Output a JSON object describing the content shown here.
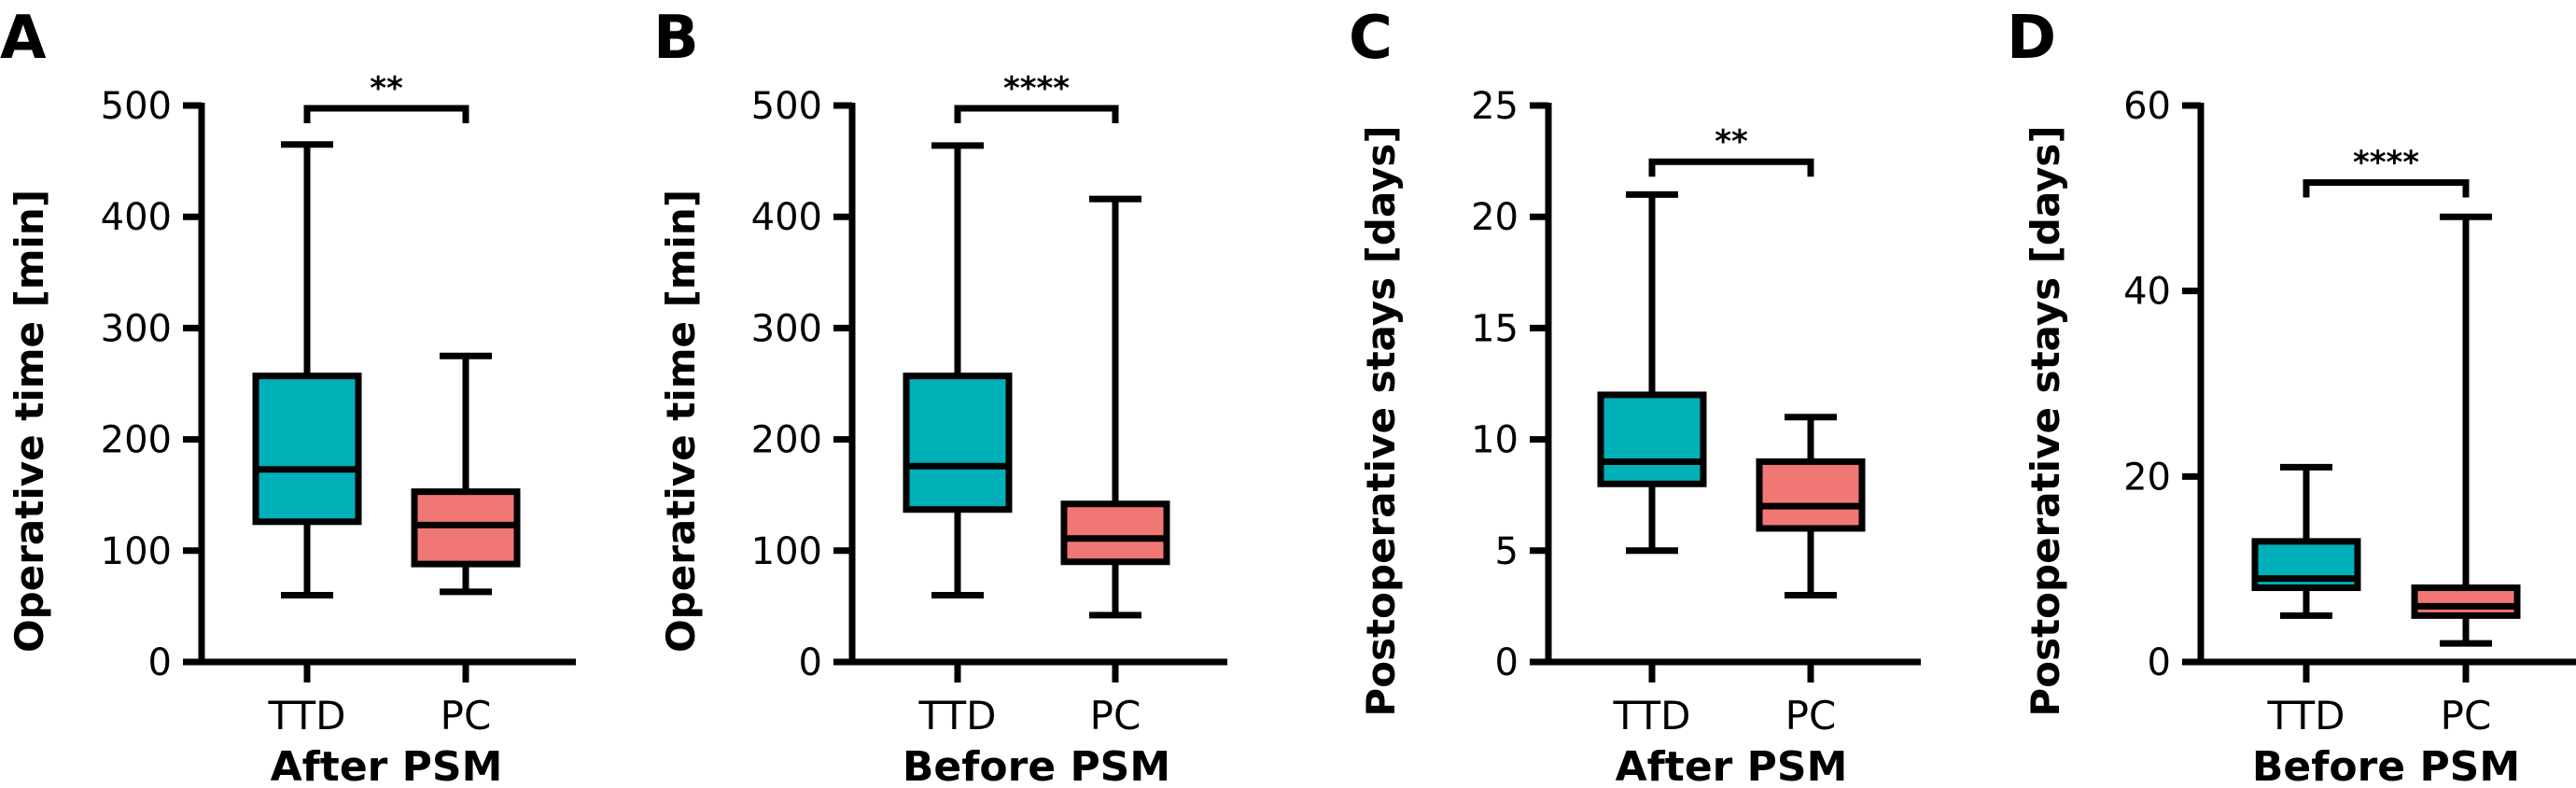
{
  "figure": {
    "colors": {
      "TTD": "#00B0B9",
      "PC": "#F17775",
      "line": "#000000"
    }
  },
  "chart_data": [
    {
      "type": "box",
      "panel": "A",
      "title": "",
      "xlabel": "After PSM",
      "ylabel": "Operative time [min]",
      "ylim": [
        0,
        500
      ],
      "yticks": [
        0,
        100,
        200,
        300,
        400,
        500
      ],
      "categories": [
        "TTD",
        "PC"
      ],
      "series": [
        {
          "name": "TTD",
          "min": 60,
          "q1": 126,
          "median": 173,
          "q3": 257,
          "max": 465
        },
        {
          "name": "PC",
          "min": 63,
          "q1": 88,
          "median": 123,
          "q3": 153,
          "max": 275
        }
      ],
      "significance": {
        "from": "TTD",
        "to": "PC",
        "label": "**",
        "y": 500
      },
      "grid": false
    },
    {
      "type": "box",
      "panel": "B",
      "title": "",
      "xlabel": "Before PSM",
      "ylabel": "Operative time [min]",
      "ylim": [
        0,
        500
      ],
      "yticks": [
        0,
        100,
        200,
        300,
        400,
        500
      ],
      "categories": [
        "TTD",
        "PC"
      ],
      "series": [
        {
          "name": "TTD",
          "min": 60,
          "q1": 137,
          "median": 176,
          "q3": 257,
          "max": 464
        },
        {
          "name": "PC",
          "min": 42,
          "q1": 90,
          "median": 111,
          "q3": 142,
          "max": 416
        }
      ],
      "significance": {
        "from": "TTD",
        "to": "PC",
        "label": "****",
        "y": 500
      },
      "grid": false
    },
    {
      "type": "box",
      "panel": "C",
      "title": "",
      "xlabel": "After PSM",
      "ylabel": "Postoperative stays [days]",
      "ylim": [
        0,
        25
      ],
      "yticks": [
        0,
        5,
        10,
        15,
        20,
        25
      ],
      "categories": [
        "TTD",
        "PC"
      ],
      "series": [
        {
          "name": "TTD",
          "min": 5,
          "q1": 8,
          "median": 9,
          "q3": 12,
          "max": 21
        },
        {
          "name": "PC",
          "min": 3,
          "q1": 6,
          "median": 7,
          "q3": 9,
          "max": 11
        }
      ],
      "significance": {
        "from": "TTD",
        "to": "PC",
        "label": "**",
        "y": 22.6
      },
      "grid": false
    },
    {
      "type": "box",
      "panel": "D",
      "title": "",
      "xlabel": "Before PSM",
      "ylabel": "Postoperative stays [days]",
      "ylim": [
        0,
        60
      ],
      "yticks": [
        0,
        20,
        40,
        60
      ],
      "categories": [
        "TTD",
        "PC"
      ],
      "series": [
        {
          "name": "TTD",
          "min": 5,
          "q1": 8,
          "median": 9,
          "q3": 13,
          "max": 21
        },
        {
          "name": "PC",
          "min": 2,
          "q1": 5,
          "median": 6,
          "q3": 8,
          "max": 48
        }
      ],
      "significance": {
        "from": "TTD",
        "to": "PC",
        "label": "****",
        "y": 52
      },
      "grid": false
    }
  ]
}
